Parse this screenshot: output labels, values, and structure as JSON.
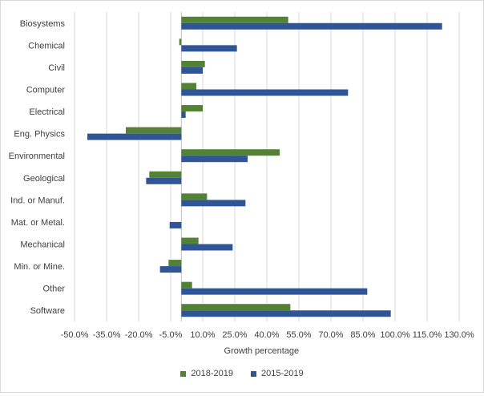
{
  "chart_data": {
    "type": "bar",
    "orientation": "horizontal",
    "title": "",
    "xlabel": "Growth percentage",
    "ylabel": "",
    "xlim": [
      -0.5,
      1.375
    ],
    "x_ticks": [
      -0.5,
      -0.35,
      -0.2,
      -0.05,
      0.1,
      0.25,
      0.4,
      0.55,
      0.7,
      0.85,
      1.0,
      1.15,
      1.3
    ],
    "x_tick_labels": [
      "-50.0%",
      "-35.0%",
      "-20.0%",
      "-5.0%",
      "10.0%",
      "25.0%",
      "40.0%",
      "55.0%",
      "70.0%",
      "85.0%",
      "100.0%",
      "115.0%",
      "130.0%"
    ],
    "grid": "vertical",
    "legend_position": "bottom",
    "categories": [
      "Biosystems",
      "Chemical",
      "Civil",
      "Computer",
      "Electrical",
      "Eng. Physics",
      "Environmental",
      "Geological",
      "Ind. or Manuf.",
      "Mat. or Metal.",
      "Mechanical",
      "Min. or Mine.",
      "Other",
      "Software"
    ],
    "series": [
      {
        "name": "2018-2019",
        "color": "#548235",
        "values": [
          0.5,
          -0.01,
          0.11,
          0.07,
          0.1,
          -0.26,
          0.46,
          -0.15,
          0.12,
          0.0,
          0.08,
          -0.06,
          0.05,
          0.51
        ]
      },
      {
        "name": "2015-2019",
        "color": "#2f5597",
        "values": [
          1.22,
          0.26,
          0.1,
          0.78,
          0.02,
          -0.44,
          0.31,
          -0.165,
          0.3,
          -0.055,
          0.24,
          -0.1,
          0.87,
          0.98
        ]
      }
    ]
  }
}
